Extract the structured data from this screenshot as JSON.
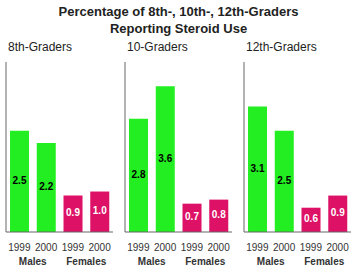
{
  "title": "Percentage of 8th-, 10th-, 12th-Graders\nReporting Steroid Use",
  "chart_data": [
    {
      "type": "bar",
      "title": "8th-Graders",
      "categories": [
        "1999",
        "2000",
        "1999",
        "2000"
      ],
      "series": [
        {
          "name": "Males",
          "color": "#22ee22",
          "values": [
            2.5,
            2.2,
            null,
            null
          ]
        },
        {
          "name": "Females",
          "color": "#dd1166",
          "values": [
            null,
            null,
            0.9,
            1.0
          ],
          "value_labels": [
            null,
            null,
            "0.9",
            "1.0"
          ]
        }
      ],
      "ylim": [
        0,
        4.2
      ],
      "tick_labels": "x",
      "grid": false,
      "data_labels": true
    },
    {
      "type": "bar",
      "title": "10-Graders",
      "categories": [
        "1999",
        "2000",
        "1999",
        "2000"
      ],
      "series": [
        {
          "name": "Males",
          "color": "#22ee22",
          "values": [
            2.8,
            3.6,
            null,
            null
          ]
        },
        {
          "name": "Females",
          "color": "#dd1166",
          "values": [
            null,
            null,
            0.7,
            0.8
          ]
        }
      ],
      "ylim": [
        0,
        4.2
      ],
      "tick_labels": "x",
      "grid": false,
      "data_labels": true
    },
    {
      "type": "bar",
      "title": "12th-Graders",
      "categories": [
        "1999",
        "2000",
        "1999",
        "2000"
      ],
      "series": [
        {
          "name": "Males",
          "color": "#22ee22",
          "values": [
            3.1,
            2.5,
            null,
            null
          ]
        },
        {
          "name": "Females",
          "color": "#dd1166",
          "values": [
            null,
            null,
            0.6,
            0.9
          ]
        }
      ],
      "ylim": [
        0,
        4.2
      ],
      "tick_labels": "x",
      "grid": false,
      "data_labels": true
    }
  ]
}
